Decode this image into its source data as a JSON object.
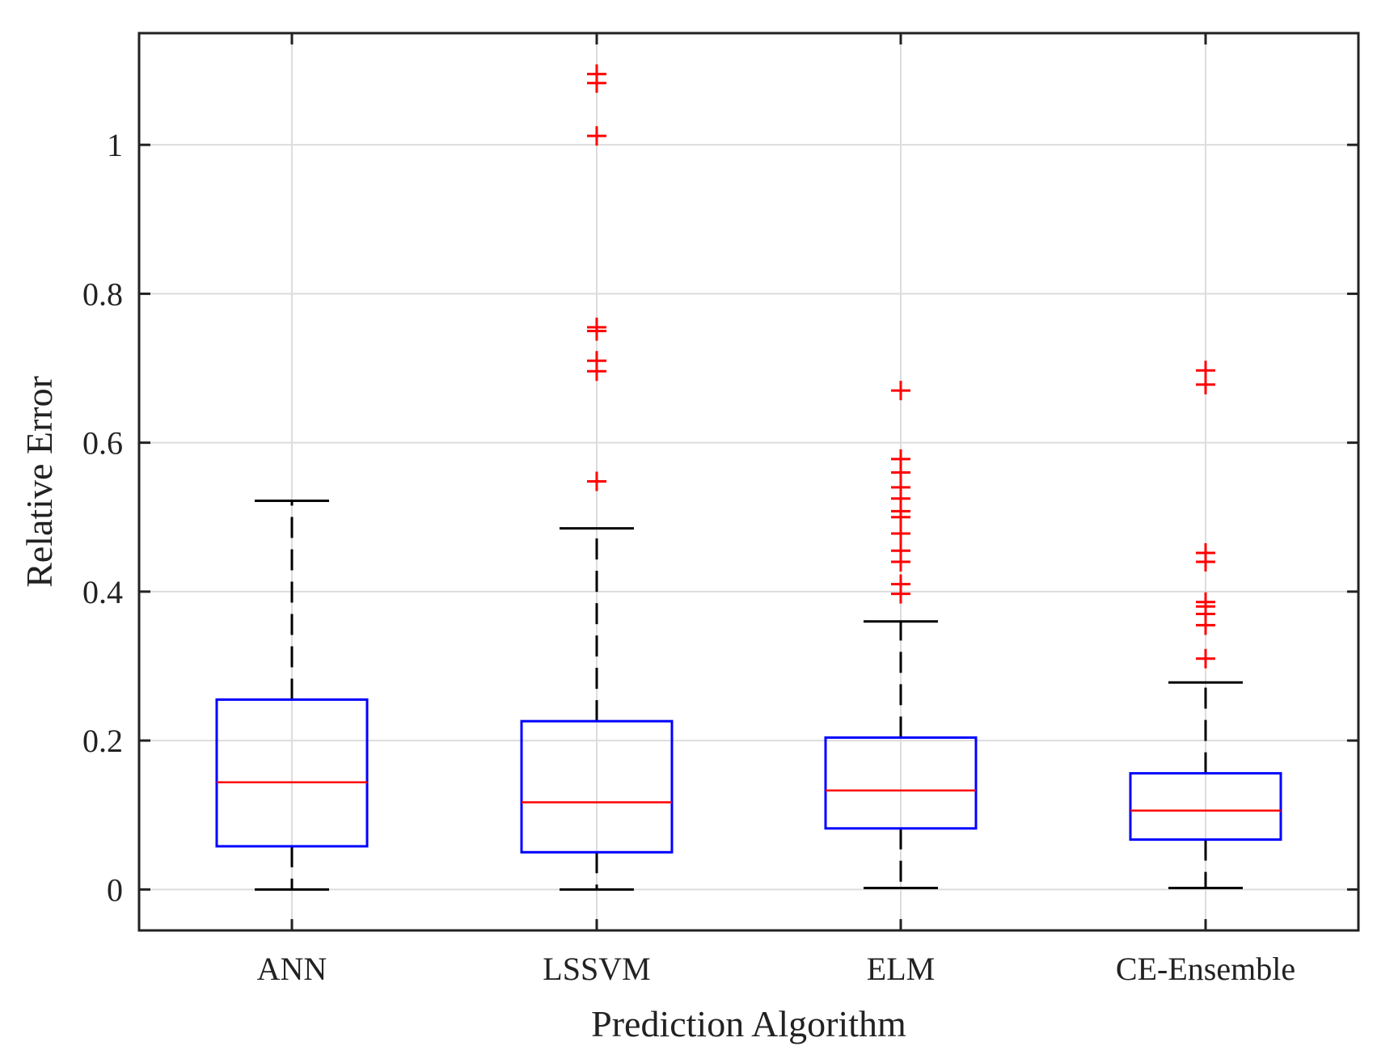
{
  "chart_data": {
    "type": "box",
    "title": "",
    "xlabel": "Prediction Algorithm",
    "ylabel": "Relative Error",
    "ylim": [
      -0.055,
      1.15
    ],
    "yticks": [
      0,
      0.2,
      0.4,
      0.6,
      0.8,
      1
    ],
    "ytick_labels": [
      "0",
      "0.2",
      "0.4",
      "0.6",
      "0.8",
      "1"
    ],
    "grid": true,
    "categories": [
      "ANN",
      "LSSVM",
      "ELM",
      "CE-Ensemble"
    ],
    "boxes": [
      {
        "name": "ANN",
        "whisker_low": 0.0,
        "q1": 0.058,
        "median": 0.144,
        "q3": 0.255,
        "whisker_high": 0.522,
        "outliers": []
      },
      {
        "name": "LSSVM",
        "whisker_low": 0.0,
        "q1": 0.05,
        "median": 0.117,
        "q3": 0.226,
        "whisker_high": 0.485,
        "outliers": [
          1.095,
          1.083,
          1.012,
          0.755,
          0.75,
          0.71,
          0.696,
          0.548
        ]
      },
      {
        "name": "ELM",
        "whisker_low": 0.002,
        "q1": 0.082,
        "median": 0.133,
        "q3": 0.204,
        "whisker_high": 0.36,
        "outliers": [
          0.67,
          0.578,
          0.56,
          0.54,
          0.525,
          0.508,
          0.5,
          0.478,
          0.455,
          0.44,
          0.41,
          0.397
        ]
      },
      {
        "name": "CE-Ensemble",
        "whisker_low": 0.002,
        "q1": 0.067,
        "median": 0.106,
        "q3": 0.156,
        "whisker_high": 0.278,
        "outliers": [
          0.697,
          0.678,
          0.452,
          0.44,
          0.386,
          0.38,
          0.37,
          0.355,
          0.31
        ]
      }
    ],
    "colors": {
      "box": "#0000ff",
      "median": "#ff0000",
      "whisker": "#000000",
      "outlier": "#ff0000",
      "grid": "#dcdcdc",
      "axis": "#222222"
    }
  }
}
